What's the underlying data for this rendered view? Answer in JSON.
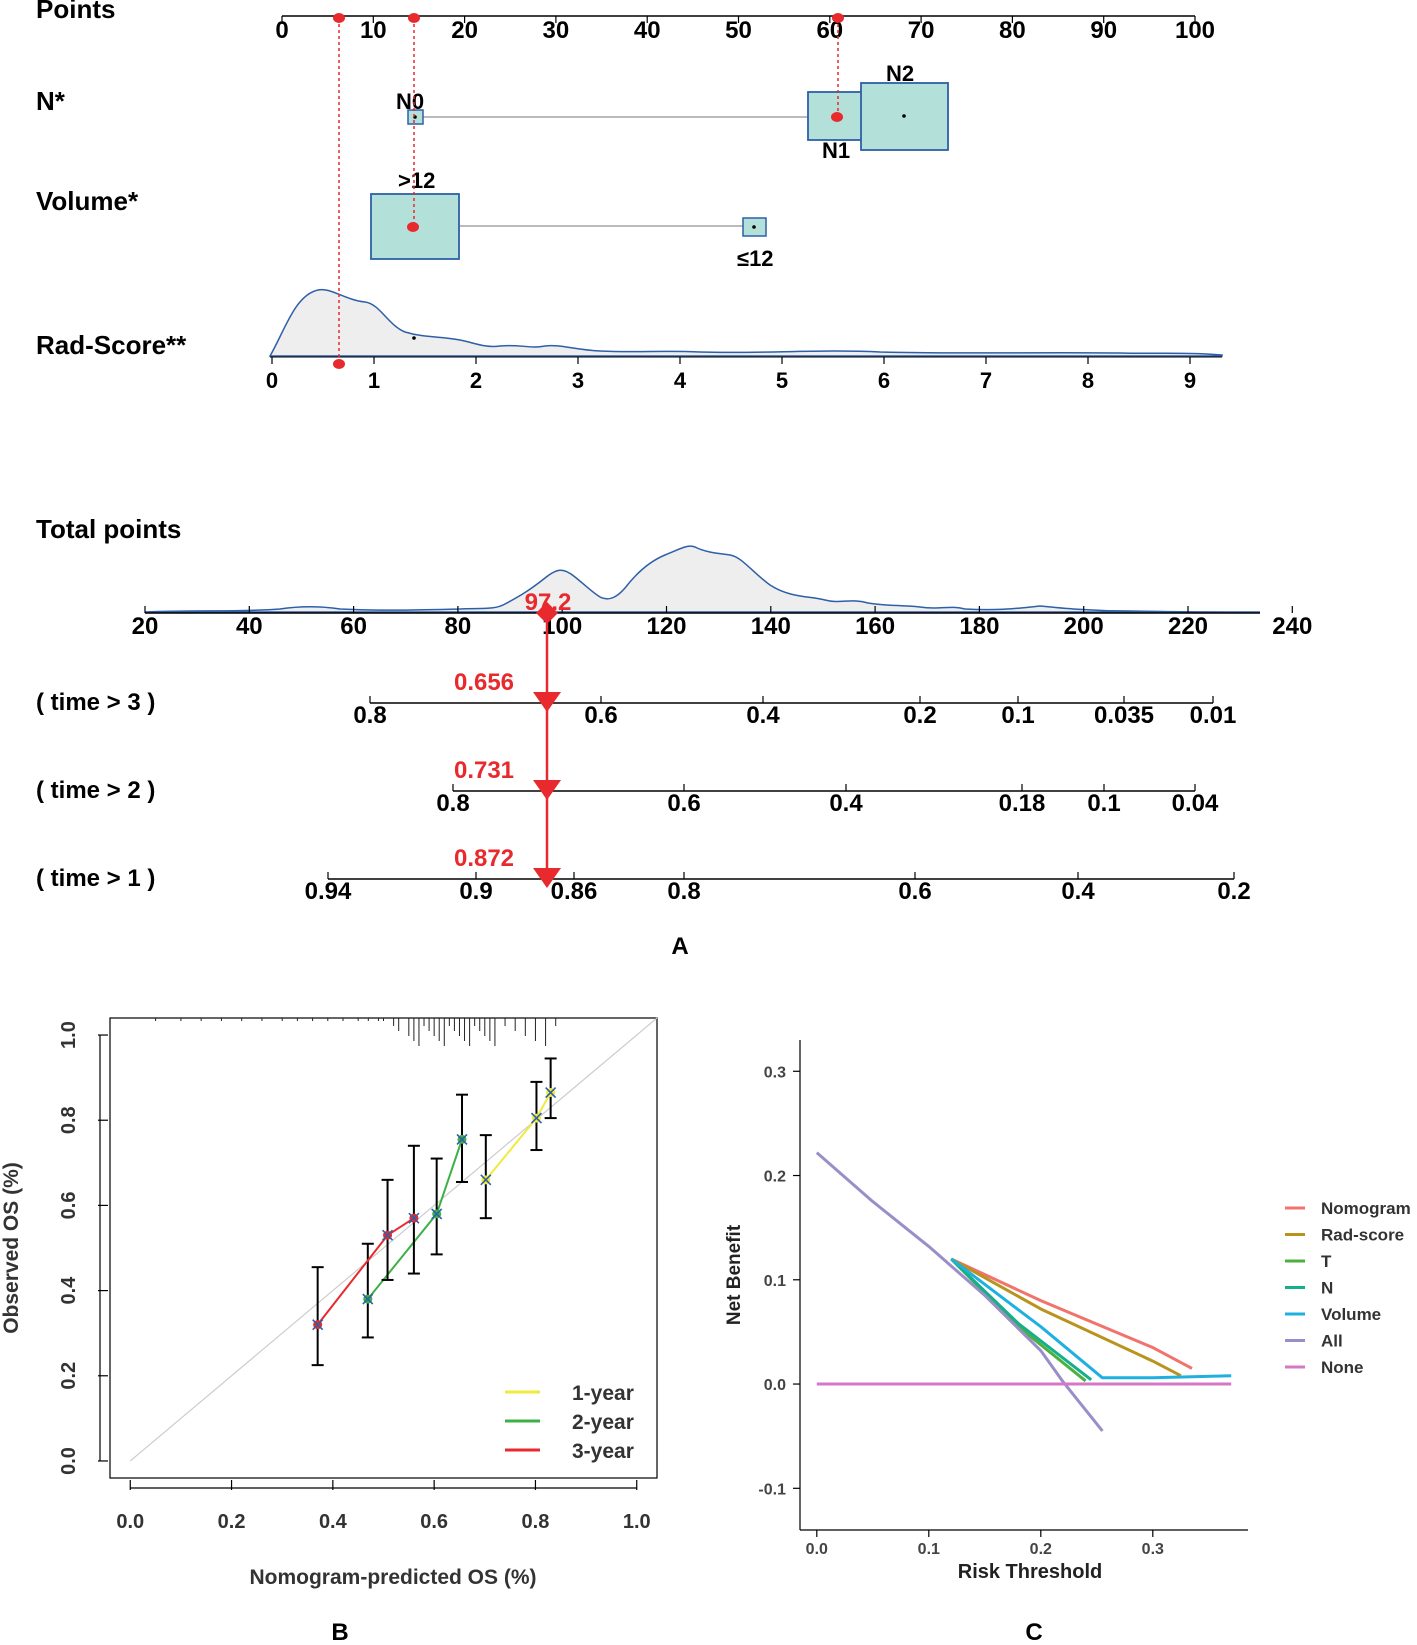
{
  "panel_a": {
    "label": "A",
    "rows": {
      "points": "Points",
      "n": "N*",
      "volume": "Volume*",
      "rad": "Rad-Score**",
      "total": "Total points",
      "t3": "( time > 3 )",
      "t2": "( time > 2 )",
      "t1": "( time > 1 )"
    },
    "points_ticks": [
      "0",
      "10",
      "20",
      "30",
      "40",
      "50",
      "60",
      "70",
      "80",
      "90",
      "100"
    ],
    "n_levels": [
      {
        "label": "N0",
        "points": 14.5,
        "weight": 1
      },
      {
        "label": "N1",
        "points": 61,
        "weight": 4
      },
      {
        "label": "N2",
        "points": 68,
        "weight": 6
      }
    ],
    "volume_levels": [
      {
        "label": "≤12",
        "points": 52,
        "weight": 1
      },
      {
        "label": ">12",
        "points": 14.5,
        "weight": 8
      }
    ],
    "rad_ticks": [
      "0",
      "1",
      "2",
      "3",
      "4",
      "5",
      "6",
      "7",
      "8",
      "9"
    ],
    "total_ticks": [
      "20",
      "40",
      "60",
      "80",
      "100",
      "120",
      "140",
      "160",
      "180",
      "200",
      "220",
      "240"
    ],
    "total_value": "97.2",
    "t3_ticks": [
      "0.8",
      "0.6",
      "0.4",
      "0.2",
      "0.1",
      "0.035",
      "0.01"
    ],
    "t2_ticks": [
      "0.8",
      "0.6",
      "0.4",
      "0.18",
      "0.1",
      "0.04"
    ],
    "t1_ticks": [
      "0.94",
      "0.9",
      "0.86",
      "0.8",
      "0.6",
      "0.4",
      "0.2"
    ],
    "pred_t3": "0.656",
    "pred_t2": "0.731",
    "pred_t1": "0.872",
    "selected_points": {
      "volume": 14.5,
      "n": 61,
      "rad": 6.5
    }
  },
  "colors": {
    "box_fill": "#b3e0d8",
    "box_stroke": "#2e5fa8",
    "density_line": "#2e5fa8",
    "density_fill": "#eeeeee",
    "marker": "#e8292d",
    "pred_text": "#e8292d"
  },
  "chart_data": [
    {
      "type": "line",
      "title": "B",
      "xlabel": "Nomogram-predicted OS (%)",
      "ylabel": "Observed OS (%)",
      "xlim": [
        -0.04,
        1.04
      ],
      "ylim": [
        -0.04,
        1.04
      ],
      "x_ticks": [
        "0.0",
        "0.2",
        "0.4",
        "0.6",
        "0.8",
        "1.0"
      ],
      "y_ticks": [
        "0.0",
        "0.2",
        "0.4",
        "0.6",
        "0.8",
        "1.0"
      ],
      "series": [
        {
          "name": "1-year",
          "color": "#f0ea3a",
          "points": [
            [
              0.702,
              0.66,
              0.57,
              0.765
            ],
            [
              0.802,
              0.805,
              0.73,
              0.89
            ],
            [
              0.83,
              0.865,
              0.805,
              0.945
            ]
          ]
        },
        {
          "name": "2-year",
          "color": "#3cb044",
          "points": [
            [
              0.469,
              0.38,
              0.29,
              0.51
            ],
            [
              0.605,
              0.58,
              0.485,
              0.71
            ],
            [
              0.655,
              0.755,
              0.655,
              0.86
            ]
          ]
        },
        {
          "name": "3-year",
          "color": "#e8292d",
          "points": [
            [
              0.37,
              0.32,
              0.225,
              0.455
            ],
            [
              0.508,
              0.53,
              0.425,
              0.66
            ],
            [
              0.56,
              0.57,
              0.44,
              0.74
            ]
          ]
        }
      ],
      "diagonal": true
    },
    {
      "type": "line",
      "title": "C",
      "xlabel": "Risk Threshold",
      "ylabel": "Net Benefit",
      "xlim": [
        -0.015,
        0.385
      ],
      "ylim": [
        -0.14,
        0.33
      ],
      "x_ticks": [
        "0.0",
        "0.1",
        "0.2",
        "0.3"
      ],
      "y_ticks": [
        "-0.1",
        "0.0",
        "0.1",
        "0.2",
        "0.3"
      ],
      "series": [
        {
          "name": "Nomogram",
          "color": "#f0736c",
          "points": [
            [
              0.12,
              0.12
            ],
            [
              0.2,
              0.08
            ],
            [
              0.3,
              0.035
            ],
            [
              0.335,
              0.015
            ]
          ]
        },
        {
          "name": "Rad-score",
          "color": "#b8931e",
          "points": [
            [
              0.12,
              0.12
            ],
            [
              0.2,
              0.072
            ],
            [
              0.3,
              0.022
            ],
            [
              0.325,
              0.008
            ]
          ]
        },
        {
          "name": "T",
          "color": "#4caf3f",
          "points": [
            [
              0.12,
              0.12
            ],
            [
              0.18,
              0.055
            ],
            [
              0.24,
              0.003
            ]
          ]
        },
        {
          "name": "N",
          "color": "#14b08a",
          "points": [
            [
              0.12,
              0.12
            ],
            [
              0.18,
              0.058
            ],
            [
              0.245,
              0.004
            ]
          ]
        },
        {
          "name": "Volume",
          "color": "#1fb0e0",
          "points": [
            [
              0.12,
              0.12
            ],
            [
              0.2,
              0.055
            ],
            [
              0.255,
              0.006
            ],
            [
              0.3,
              0.006
            ],
            [
              0.37,
              0.008
            ]
          ]
        },
        {
          "name": "All",
          "color": "#9a8ec8",
          "points": [
            [
              0.0,
              0.222
            ],
            [
              0.05,
              0.175
            ],
            [
              0.1,
              0.132
            ],
            [
              0.15,
              0.085
            ],
            [
              0.2,
              0.032
            ],
            [
              0.22,
              0.002
            ],
            [
              0.255,
              -0.045
            ]
          ]
        },
        {
          "name": "None",
          "color": "#d477c4",
          "points": [
            [
              0.0,
              0.0
            ],
            [
              0.37,
              0.0
            ]
          ]
        }
      ]
    }
  ]
}
